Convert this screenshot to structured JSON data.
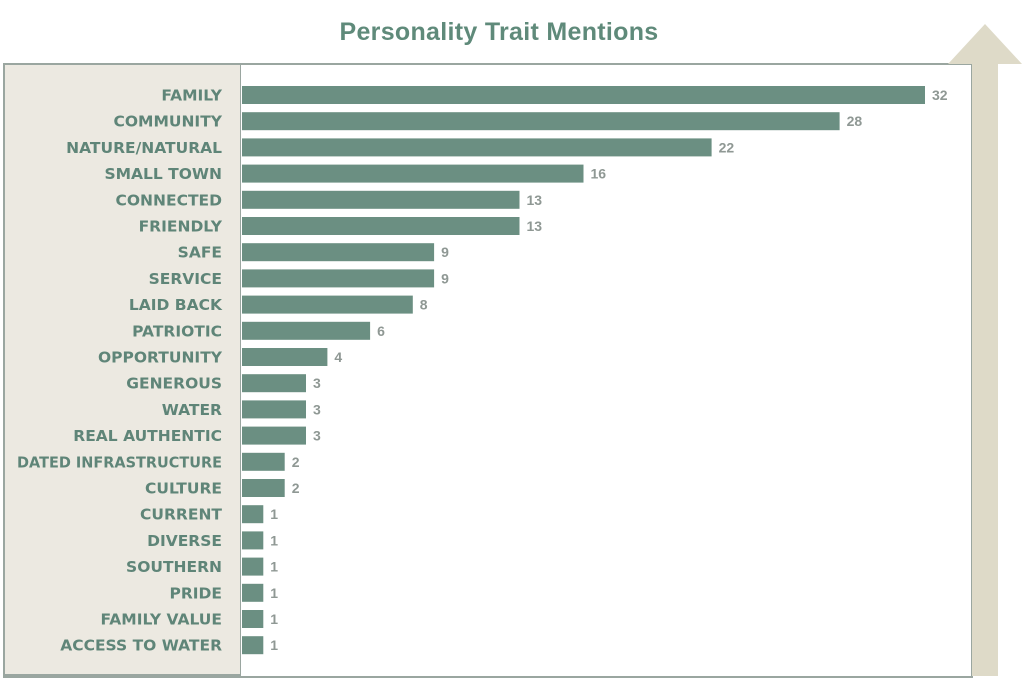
{
  "colors": {
    "bar": "#6b8f82",
    "title": "#5f8a7a",
    "category_text": "#5f8578",
    "value_text": "#8f9894",
    "arrow": "#dedac8"
  },
  "chart_data": {
    "type": "bar",
    "orientation": "horizontal",
    "title": "Personality Trait Mentions",
    "xlabel": "",
    "ylabel": "",
    "xlim": [
      0,
      32
    ],
    "grid": false,
    "legend": "none",
    "categories": [
      "FAMILY",
      "COMMUNITY",
      "NATURE/NATURAL",
      "SMALL TOWN",
      "CONNECTED",
      "FRIENDLY",
      "SAFE",
      "SERVICE",
      "LAID BACK",
      "PATRIOTIC",
      "OPPORTUNITY",
      "GENEROUS",
      "WATER",
      "REAL AUTHENTIC",
      "DATED INFRASTRUCTURE",
      "CULTURE",
      "CURRENT",
      "DIVERSE",
      "SOUTHERN",
      "PRIDE",
      "FAMILY VALUE",
      "ACCESS TO WATER"
    ],
    "values": [
      32,
      28,
      22,
      16,
      13,
      13,
      9,
      9,
      8,
      6,
      4,
      3,
      3,
      3,
      2,
      2,
      1,
      1,
      1,
      1,
      1,
      1
    ]
  }
}
